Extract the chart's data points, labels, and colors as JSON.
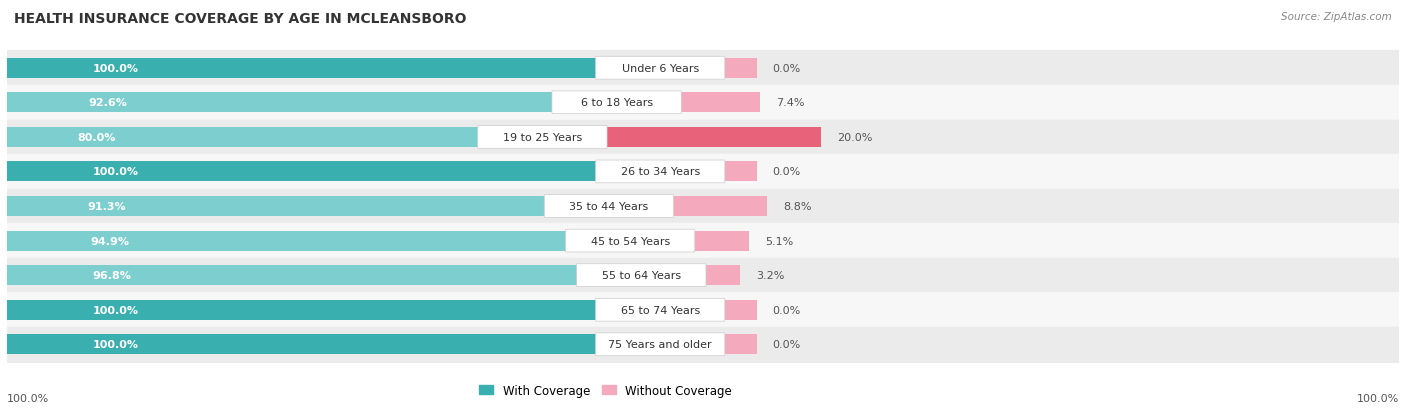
{
  "title": "HEALTH INSURANCE COVERAGE BY AGE IN MCLEANSBORO",
  "source": "Source: ZipAtlas.com",
  "categories": [
    "Under 6 Years",
    "6 to 18 Years",
    "19 to 25 Years",
    "26 to 34 Years",
    "35 to 44 Years",
    "45 to 54 Years",
    "55 to 64 Years",
    "65 to 74 Years",
    "75 Years and older"
  ],
  "with_coverage": [
    100.0,
    92.6,
    80.0,
    100.0,
    91.3,
    94.9,
    96.8,
    100.0,
    100.0
  ],
  "without_coverage": [
    0.0,
    7.4,
    20.0,
    0.0,
    8.8,
    5.1,
    3.2,
    0.0,
    0.0
  ],
  "color_with_dark": "#3AAFAF",
  "color_with_light": "#7DCFCF",
  "color_without_dark": "#E8637A",
  "color_without_light": "#F4AABC",
  "title_fontsize": 10,
  "bar_label_fontsize": 8,
  "category_fontsize": 8,
  "legend_fontsize": 8.5,
  "source_fontsize": 7.5,
  "footer_label": "100.0%",
  "bar_max": 100.0,
  "row_bg_even": "#EBEBEB",
  "row_bg_odd": "#F7F7F7"
}
